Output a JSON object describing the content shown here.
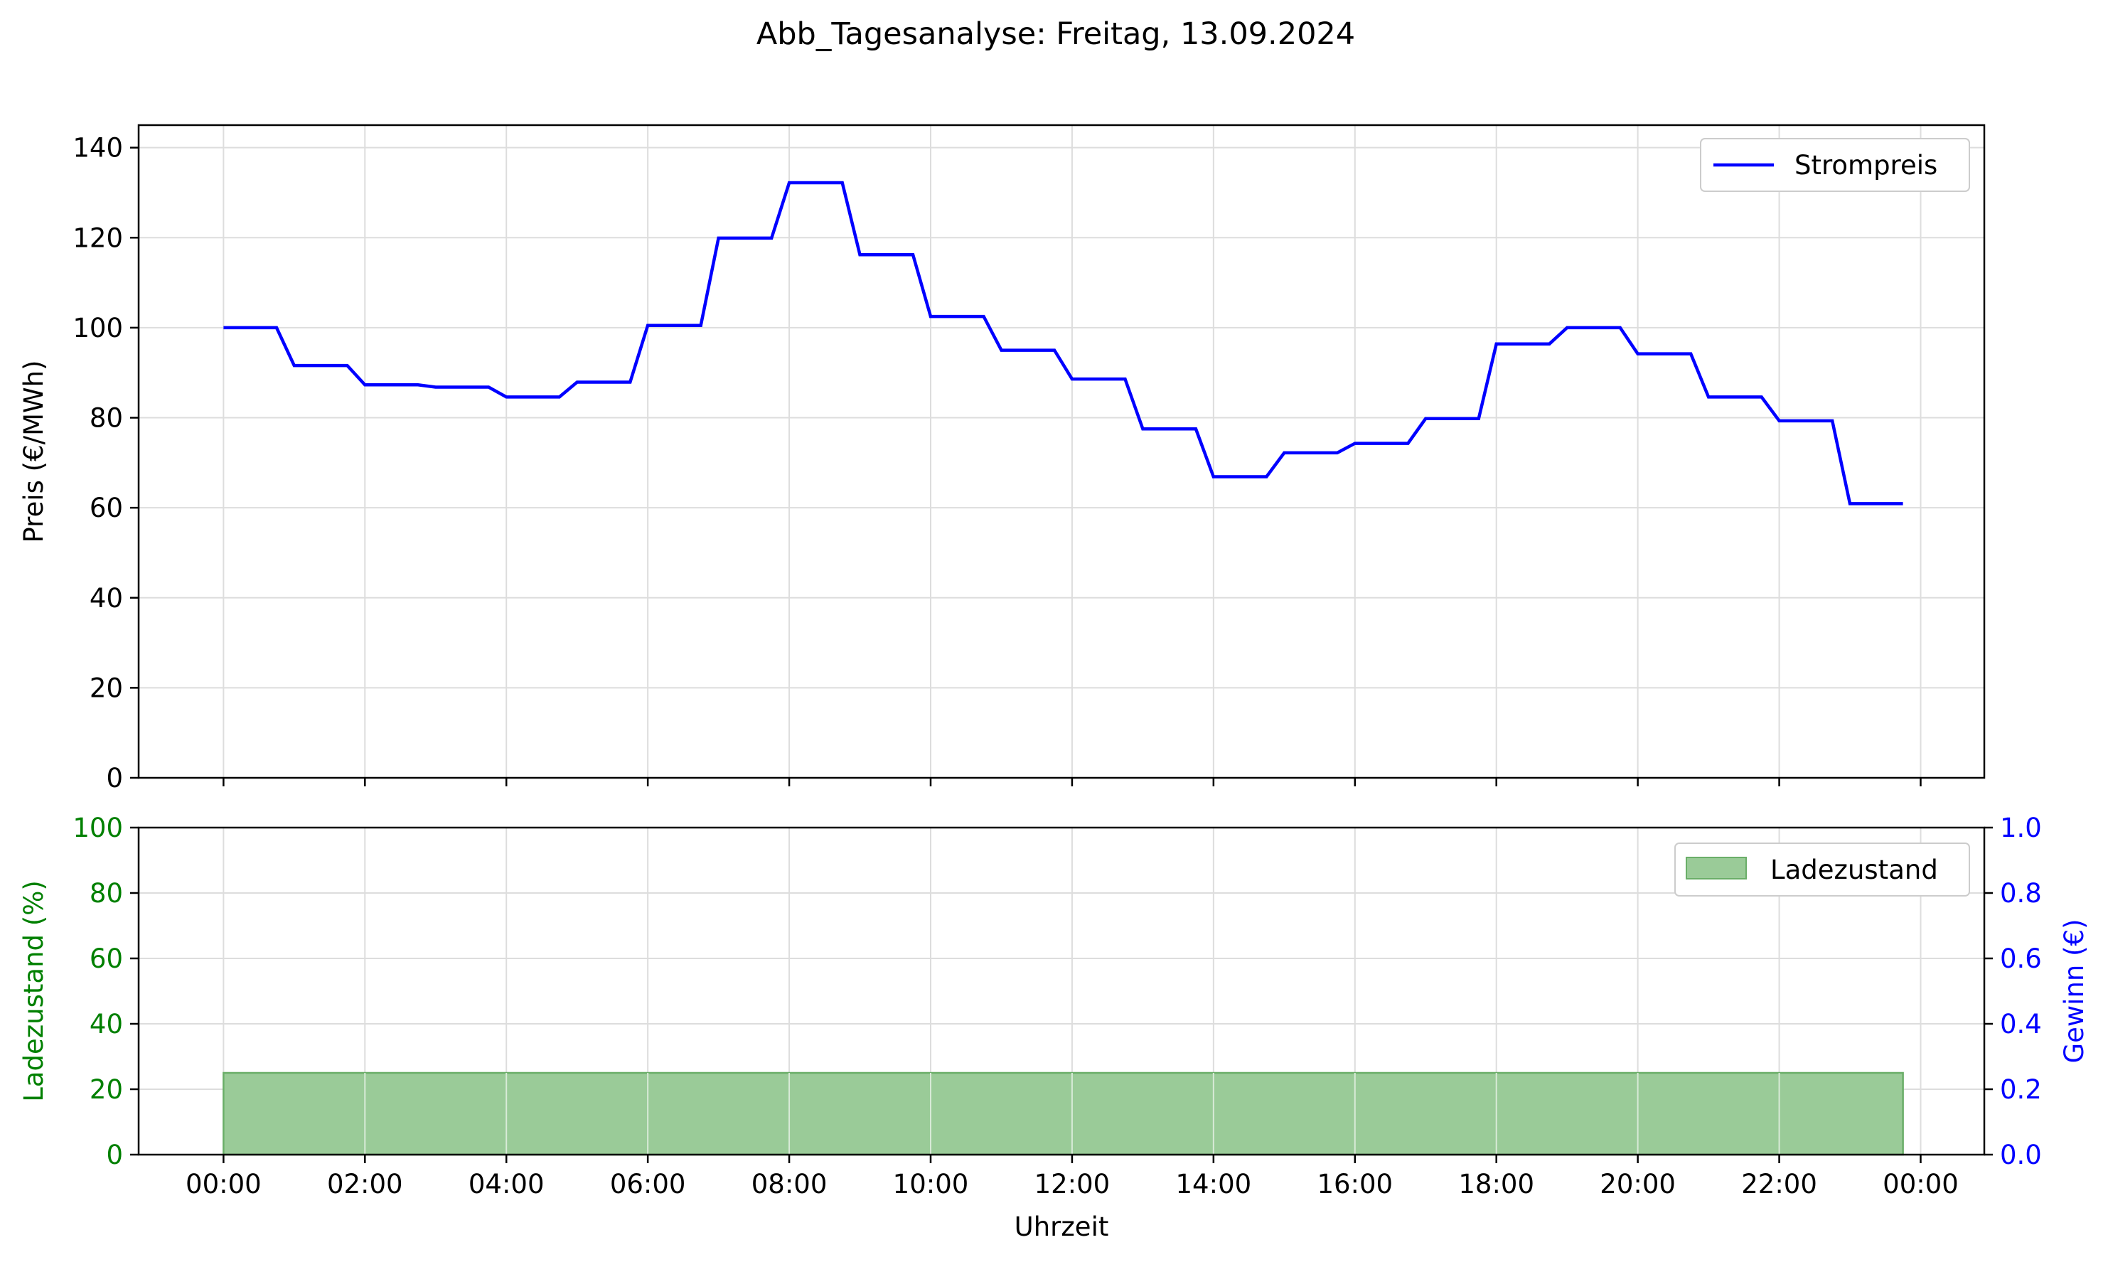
{
  "chart_data": [
    {
      "type": "line",
      "title": "Abb_Tagesanalyse: Freitag, 13.09.2024",
      "xlabel": "",
      "ylabel": "Preis (€/MWh)",
      "ylim": [
        0,
        145
      ],
      "yticks": [
        0,
        20,
        40,
        60,
        80,
        100,
        120,
        140
      ],
      "grid": true,
      "legend_position": "top-right",
      "x_unit": "hours",
      "xlim": [
        -1.2,
        24.9
      ],
      "series": [
        {
          "name": "Strompreis",
          "color": "#0000ff",
          "steps": [
            {
              "t": 0,
              "v": 100.0
            },
            {
              "t": 1,
              "v": 91.6
            },
            {
              "t": 2,
              "v": 87.3
            },
            {
              "t": 3,
              "v": 86.8
            },
            {
              "t": 4,
              "v": 84.6
            },
            {
              "t": 5,
              "v": 87.9
            },
            {
              "t": 6,
              "v": 100.5
            },
            {
              "t": 7,
              "v": 119.9
            },
            {
              "t": 8,
              "v": 132.2
            },
            {
              "t": 9,
              "v": 116.2
            },
            {
              "t": 10,
              "v": 102.5
            },
            {
              "t": 11,
              "v": 95.0
            },
            {
              "t": 12,
              "v": 88.6
            },
            {
              "t": 13,
              "v": 77.5
            },
            {
              "t": 14,
              "v": 66.9
            },
            {
              "t": 15,
              "v": 72.2
            },
            {
              "t": 16,
              "v": 74.3
            },
            {
              "t": 17,
              "v": 79.8
            },
            {
              "t": 18,
              "v": 96.4
            },
            {
              "t": 19,
              "v": 100.0
            },
            {
              "t": 20,
              "v": 94.2
            },
            {
              "t": 21,
              "v": 84.6
            },
            {
              "t": 22,
              "v": 79.3
            },
            {
              "t": 23,
              "v": 60.9
            }
          ],
          "ramp": 0.25,
          "end": 23.75
        }
      ]
    },
    {
      "type": "area",
      "xlabel": "Uhrzeit",
      "ylabel": "Ladezustand (%)",
      "ylabel_right": "Gewinn (€)",
      "ylim": [
        0,
        100
      ],
      "ylim_right": [
        0,
        1.0
      ],
      "yticks": [
        0,
        20,
        40,
        60,
        80,
        100
      ],
      "yticks_right": [
        "0.0",
        "0.2",
        "0.4",
        "0.6",
        "0.8",
        "1.0"
      ],
      "x_ticks": [
        "00:00",
        "02:00",
        "04:00",
        "06:00",
        "08:00",
        "10:00",
        "12:00",
        "14:00",
        "16:00",
        "18:00",
        "20:00",
        "22:00",
        "00:00"
      ],
      "xlim": [
        -1.2,
        24.9
      ],
      "grid": true,
      "legend_position": "top-right",
      "left_axis_color": "#008000",
      "right_axis_color": "#0000ff",
      "series": [
        {
          "name": "Ladezustand",
          "fill_color": "#9acb98",
          "edge_color": "#6aae68",
          "x": [
            0,
            23.75
          ],
          "values": [
            25,
            25
          ]
        }
      ]
    }
  ]
}
